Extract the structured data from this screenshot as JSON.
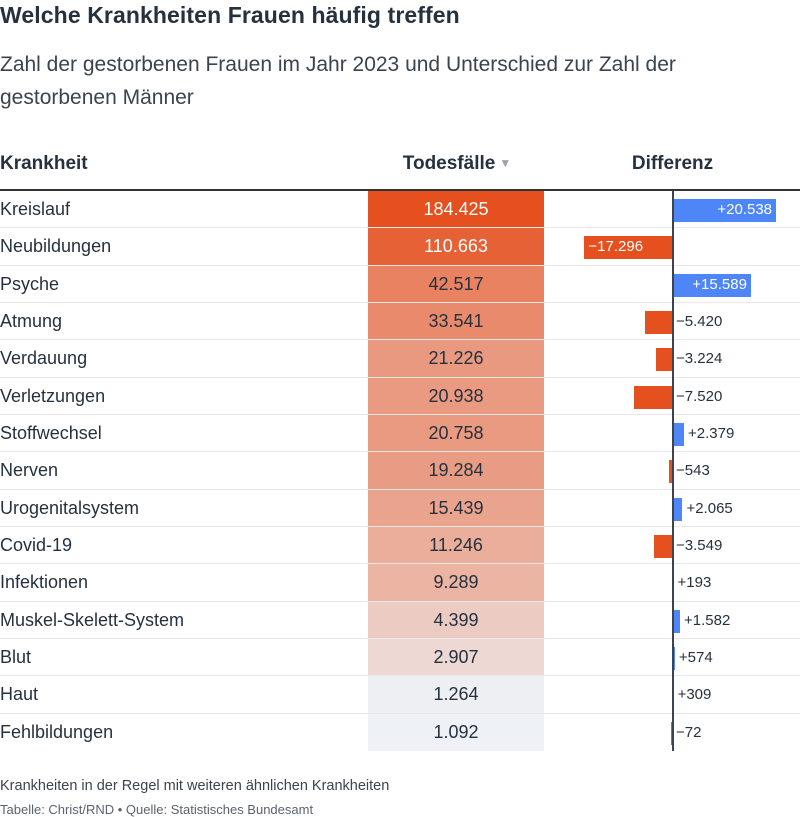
{
  "title": "Welche Krankheiten Frauen häufig treffen",
  "subtitle": "Zahl der gestorbenen Frauen im Jahr 2023 und Unterschied zur Zahl der gestorbenen Männer",
  "columns": {
    "name": "Krankheit",
    "value": "Todesfälle",
    "value_sort_icon": "▼",
    "diff": "Differenz"
  },
  "colors": {
    "positive": "#4f86f7",
    "negative": "#e5501e",
    "heat_high": "#e5501e",
    "heat_low": "#eef2f6"
  },
  "chart_data": {
    "type": "table",
    "rows": [
      {
        "name": "Kreislauf",
        "value": 184425,
        "value_label": "184.425",
        "diff": 20538,
        "diff_label": "+20.538"
      },
      {
        "name": "Neubildungen",
        "value": 110663,
        "value_label": "110.663",
        "diff": -17296,
        "diff_label": "−17.296"
      },
      {
        "name": "Psyche",
        "value": 42517,
        "value_label": "42.517",
        "diff": 15589,
        "diff_label": "+15.589"
      },
      {
        "name": "Atmung",
        "value": 33541,
        "value_label": "33.541",
        "diff": -5420,
        "diff_label": "−5.420"
      },
      {
        "name": "Verdauung",
        "value": 21226,
        "value_label": "21.226",
        "diff": -3224,
        "diff_label": "−3.224"
      },
      {
        "name": "Verletzungen",
        "value": 20938,
        "value_label": "20.938",
        "diff": -7520,
        "diff_label": "−7.520"
      },
      {
        "name": "Stoffwechsel",
        "value": 20758,
        "value_label": "20.758",
        "diff": 2379,
        "diff_label": "+2.379"
      },
      {
        "name": "Nerven",
        "value": 19284,
        "value_label": "19.284",
        "diff": -543,
        "diff_label": "−543"
      },
      {
        "name": "Urogenitalsystem",
        "value": 15439,
        "value_label": "15.439",
        "diff": 2065,
        "diff_label": "+2.065"
      },
      {
        "name": "Covid-19",
        "value": 11246,
        "value_label": "11.246",
        "diff": -3549,
        "diff_label": "−3.549"
      },
      {
        "name": "Infektionen",
        "value": 9289,
        "value_label": "9.289",
        "diff": 193,
        "diff_label": "+193"
      },
      {
        "name": "Muskel-Skelett-System",
        "value": 4399,
        "value_label": "4.399",
        "diff": 1582,
        "diff_label": "+1.582"
      },
      {
        "name": "Blut",
        "value": 2907,
        "value_label": "2.907",
        "diff": 574,
        "diff_label": "+574"
      },
      {
        "name": "Haut",
        "value": 1264,
        "value_label": "1.264",
        "diff": 309,
        "diff_label": "+309"
      },
      {
        "name": "Fehlbildungen",
        "value": 1092,
        "value_label": "1.092",
        "diff": -72,
        "diff_label": "−72"
      }
    ]
  },
  "footer": {
    "note": "Krankheiten in der Regel mit weiteren ähnlichen Krankheiten",
    "source": "Tabelle: Christ/RND • Quelle: Statistisches Bundesamt"
  }
}
